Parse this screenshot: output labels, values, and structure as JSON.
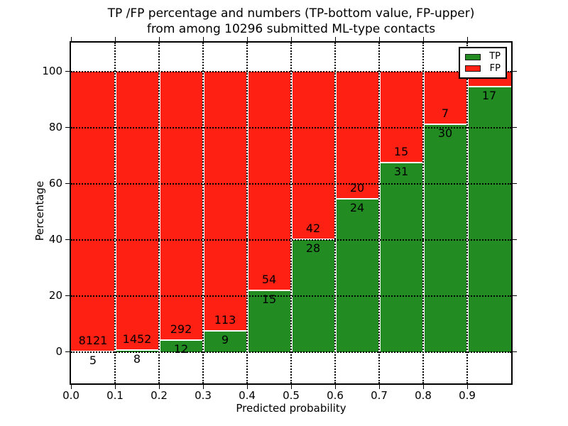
{
  "title": {
    "line1": "TP /FP percentage and numbers (TP-bottom value, FP-upper)",
    "line2": "from among 10296 submitted ML-type contacts"
  },
  "axes": {
    "xlabel": "Predicted probability",
    "ylabel": "Percentage",
    "x_ticks": [
      "0.0",
      "0.1",
      "0.2",
      "0.3",
      "0.4",
      "0.5",
      "0.6",
      "0.7",
      "0.8",
      "0.9"
    ],
    "y_ticks": [
      "0",
      "20",
      "40",
      "60",
      "80",
      "100"
    ]
  },
  "legend": [
    {
      "label": "TP",
      "color": "#228b22"
    },
    {
      "label": "FP",
      "color": "#ff2014"
    }
  ],
  "colors": {
    "tp": "#228b22",
    "fp": "#ff2014",
    "bar_edge": "#ffffff",
    "grid": "#000000",
    "background": "#ffffff"
  },
  "chart_data": {
    "type": "bar",
    "stacked_percentage": true,
    "title": "TP /FP percentage and numbers (TP-bottom value, FP-upper) from among 10296 submitted ML-type contacts",
    "xlabel": "Predicted probability",
    "ylabel": "Percentage",
    "xlim": [
      0.0,
      1.0
    ],
    "ylim": [
      -11,
      110
    ],
    "grid": true,
    "legend_position": "upper right",
    "total_submitted_contacts": 10296,
    "series": [
      {
        "name": "TP",
        "color": "#228b22",
        "position": "bottom"
      },
      {
        "name": "FP",
        "color": "#ff2014",
        "position": "top"
      }
    ],
    "bins": [
      {
        "range": "0.0-0.1",
        "tp": 5,
        "fp": 8121,
        "tp_pct": 0.06
      },
      {
        "range": "0.1-0.2",
        "tp": 8,
        "fp": 1452,
        "tp_pct": 0.55
      },
      {
        "range": "0.2-0.3",
        "tp": 12,
        "fp": 292,
        "tp_pct": 3.95
      },
      {
        "range": "0.3-0.4",
        "tp": 9,
        "fp": 113,
        "tp_pct": 7.38
      },
      {
        "range": "0.4-0.5",
        "tp": 15,
        "fp": 54,
        "tp_pct": 21.74
      },
      {
        "range": "0.5-0.6",
        "tp": 28,
        "fp": 42,
        "tp_pct": 40.0
      },
      {
        "range": "0.6-0.7",
        "tp": 24,
        "fp": 20,
        "tp_pct": 54.55
      },
      {
        "range": "0.7-0.8",
        "tp": 31,
        "fp": 15,
        "tp_pct": 67.39
      },
      {
        "range": "0.8-0.9",
        "tp": 30,
        "fp": 7,
        "tp_pct": 81.08
      },
      {
        "range": "0.9-1.0",
        "tp": 17,
        "fp": null,
        "tp_pct": 94.44
      }
    ]
  }
}
